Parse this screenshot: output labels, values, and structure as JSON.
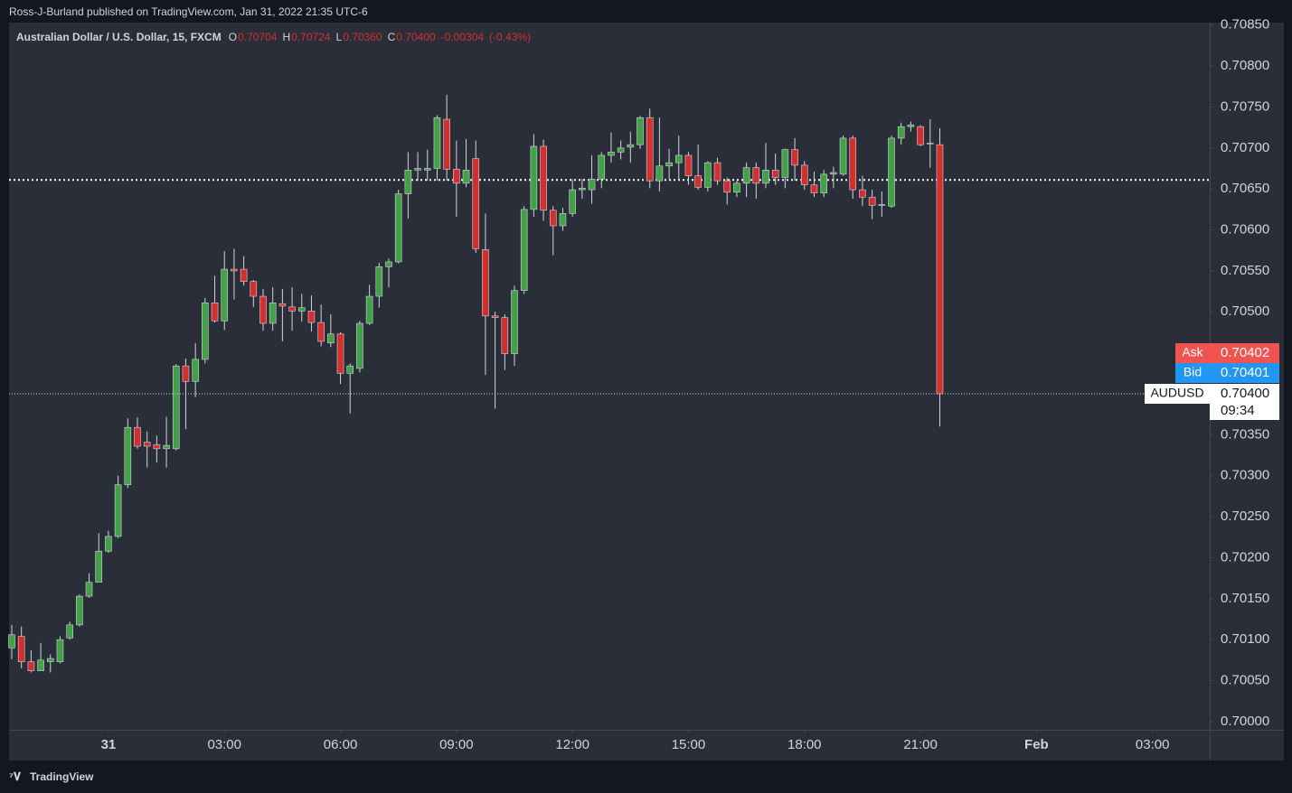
{
  "header": "Ross-J-Burland published on TradingView.com, Jan 31, 2022 21:35 UTC-6",
  "footer": "TradingView",
  "chart_data": {
    "type": "candlestick",
    "title": "Australian Dollar / U.S. Dollar, 15, FXCM",
    "legend": {
      "open_label": "O",
      "open": 0.70704,
      "high_label": "H",
      "high": 0.70724,
      "low_label": "L",
      "low": {
        "value": 0.7036,
        "label": "0.70360"
      },
      "close_label": "C",
      "close": {
        "value": 0.704,
        "label": "0.70400"
      },
      "change": -0.00304,
      "change_pct": {
        "value": -0.43,
        "label": "(-0.43%)"
      }
    },
    "up_color": "#43a047",
    "down_color": "#d32f2f",
    "wick_color": "#d1d4dc",
    "x": [
      -2.5,
      -2.25,
      -2,
      -1.75,
      -1.5,
      -1.25,
      -1,
      -0.75,
      -0.5,
      -0.25,
      0,
      0.25,
      0.5,
      0.75,
      1,
      1.25,
      1.5,
      1.75,
      2,
      2.25,
      2.5,
      2.75,
      3,
      3.25,
      3.5,
      3.75,
      4,
      4.25,
      4.5,
      4.75,
      5,
      5.25,
      5.5,
      5.75,
      6,
      6.25,
      6.5,
      6.75,
      7,
      7.25,
      7.5,
      7.75,
      8,
      8.25,
      8.5,
      8.75,
      9,
      9.25,
      9.5,
      9.75,
      10,
      10.25,
      10.5,
      10.75,
      11,
      11.25,
      11.5,
      11.75,
      12,
      12.25,
      12.5,
      12.75,
      13,
      13.25,
      13.5,
      13.75,
      14,
      14.25,
      14.5,
      14.75,
      15,
      15.25,
      15.5,
      15.75,
      16,
      16.25,
      16.5,
      16.75,
      17,
      17.25,
      17.5,
      17.75,
      18,
      18.25,
      18.5,
      18.75,
      19,
      19.25,
      19.5,
      19.75,
      20,
      20.25,
      20.5,
      20.75,
      21,
      21.25,
      21.5
    ],
    "open": [
      0.7009,
      0.70104,
      0.70073,
      0.70062,
      0.70073,
      0.70073,
      0.70102,
      0.70118,
      0.70153,
      0.7017,
      0.70208,
      0.70226,
      0.70289,
      0.70359,
      0.70341,
      0.70338,
      0.70333,
      0.70333,
      0.70434,
      0.70415,
      0.70442,
      0.70511,
      0.70489,
      0.70552,
      0.70552,
      0.70537,
      0.70519,
      0.70486,
      0.7051,
      0.70506,
      0.70501,
      0.70501,
      0.70487,
      0.70462,
      0.70473,
      0.70425,
      0.70431,
      0.70486,
      0.70519,
      0.70555,
      0.70561,
      0.70644,
      0.70673,
      0.70673,
      0.70675,
      0.70735,
      0.70674,
      0.70657,
      0.70687,
      0.70576,
      0.70495,
      0.70493,
      0.70449,
      0.70526,
      0.70625,
      0.70702,
      0.70624,
      0.70605,
      0.7062,
      0.70649,
      0.70649,
      0.70662,
      0.70691,
      0.70695,
      0.70701,
      0.70704,
      0.70737,
      0.7066,
      0.70678,
      0.70682,
      0.70691,
      0.70666,
      0.70652,
      0.70682,
      0.7066,
      0.70646,
      0.70657,
      0.70676,
      0.70657,
      0.70673,
      0.70664,
      0.70698,
      0.70679,
      0.70655,
      0.70645,
      0.70668,
      0.70668,
      0.70712,
      0.70649,
      0.7064,
      0.7063,
      0.70629,
      0.70712,
      0.70726,
      0.70726,
      0.70706,
      0.70704
    ],
    "high": [
      0.70118,
      0.70116,
      0.70087,
      0.70096,
      0.70082,
      0.70104,
      0.70122,
      0.70155,
      0.70181,
      0.7023,
      0.70233,
      0.703,
      0.7037,
      0.70371,
      0.70354,
      0.70349,
      0.70372,
      0.70436,
      0.70443,
      0.70462,
      0.70517,
      0.70544,
      0.70574,
      0.70577,
      0.70568,
      0.70539,
      0.70528,
      0.7053,
      0.70528,
      0.7053,
      0.70522,
      0.7052,
      0.70509,
      0.70497,
      0.70475,
      0.70437,
      0.70489,
      0.70533,
      0.7056,
      0.70565,
      0.70649,
      0.70695,
      0.70695,
      0.70698,
      0.7074,
      0.70765,
      0.70709,
      0.70711,
      0.70709,
      0.7062,
      0.705,
      0.70497,
      0.70532,
      0.70629,
      0.70717,
      0.7071,
      0.70629,
      0.70627,
      0.70662,
      0.70662,
      0.70691,
      0.70695,
      0.70719,
      0.70709,
      0.7072,
      0.70739,
      0.70748,
      0.70737,
      0.70699,
      0.70715,
      0.70695,
      0.70704,
      0.70684,
      0.70688,
      0.70664,
      0.7066,
      0.70682,
      0.70682,
      0.70706,
      0.70693,
      0.70699,
      0.70712,
      0.70684,
      0.70671,
      0.70673,
      0.70677,
      0.70715,
      0.70715,
      0.70666,
      0.70649,
      0.70647,
      0.70715,
      0.70731,
      0.70732,
      0.70728,
      0.70735,
      0.70724
    ],
    "low": [
      0.70076,
      0.70065,
      0.7006,
      0.70062,
      0.7006,
      0.70071,
      0.701,
      0.70116,
      0.70151,
      0.7017,
      0.70206,
      0.70224,
      0.70285,
      0.70333,
      0.7031,
      0.70316,
      0.7031,
      0.70331,
      0.70357,
      0.70396,
      0.70437,
      0.70487,
      0.70478,
      0.70515,
      0.70532,
      0.70506,
      0.70477,
      0.70477,
      0.70464,
      0.70477,
      0.70488,
      0.70476,
      0.70458,
      0.70457,
      0.70412,
      0.70376,
      0.70426,
      0.70484,
      0.70505,
      0.7053,
      0.70559,
      0.70614,
      0.7066,
      0.7066,
      0.7066,
      0.7066,
      0.70616,
      0.70652,
      0.70572,
      0.70423,
      0.70382,
      0.70429,
      0.70434,
      0.70522,
      0.70616,
      0.70611,
      0.70569,
      0.70599,
      0.70616,
      0.70638,
      0.70632,
      0.70651,
      0.70682,
      0.70686,
      0.70682,
      0.70699,
      0.70651,
      0.70647,
      0.70662,
      0.7066,
      0.70655,
      0.70649,
      0.70647,
      0.70655,
      0.70631,
      0.7064,
      0.7064,
      0.70638,
      0.70651,
      0.70655,
      0.70651,
      0.7066,
      0.70649,
      0.7064,
      0.7064,
      0.70651,
      0.70666,
      0.70638,
      0.70629,
      0.70613,
      0.70616,
      0.70627,
      0.70704,
      0.7072,
      0.70702,
      0.70676,
      0.7036
    ],
    "close": [
      0.70106,
      0.70073,
      0.70062,
      0.70075,
      0.70077,
      0.701,
      0.70118,
      0.70153,
      0.7017,
      0.70208,
      0.70226,
      0.70289,
      0.70359,
      0.70336,
      0.70336,
      0.70333,
      0.70337,
      0.70434,
      0.70415,
      0.70442,
      0.70511,
      0.70489,
      0.70552,
      0.7055,
      0.70537,
      0.70519,
      0.70486,
      0.70511,
      0.70507,
      0.70501,
      0.70505,
      0.70487,
      0.70464,
      0.70473,
      0.70425,
      0.70434,
      0.70486,
      0.70519,
      0.70555,
      0.70561,
      0.70644,
      0.70673,
      0.70675,
      0.70675,
      0.70737,
      0.70674,
      0.70657,
      0.70673,
      0.70577,
      0.70495,
      0.70493,
      0.70449,
      0.70526,
      0.70625,
      0.70702,
      0.70624,
      0.70605,
      0.7062,
      0.70649,
      0.70651,
      0.70662,
      0.70691,
      0.70695,
      0.707,
      0.70704,
      0.70737,
      0.7066,
      0.70678,
      0.70682,
      0.70691,
      0.70666,
      0.70652,
      0.70682,
      0.7066,
      0.70646,
      0.70657,
      0.70676,
      0.70657,
      0.70673,
      0.70664,
      0.70698,
      0.70679,
      0.70655,
      0.70645,
      0.70668,
      0.7067,
      0.70712,
      0.70649,
      0.7064,
      0.7063,
      0.70631,
      0.70712,
      0.70726,
      0.70728,
      0.70704,
      0.70705,
      0.704
    ],
    "xlim": [
      -2.57,
      28.48
    ],
    "xticks": [
      {
        "value": 0,
        "label": "31"
      },
      {
        "value": 3,
        "label": "03:00"
      },
      {
        "value": 6,
        "label": "06:00"
      },
      {
        "value": 9,
        "label": "09:00"
      },
      {
        "value": 12,
        "label": "12:00"
      },
      {
        "value": 15,
        "label": "15:00"
      },
      {
        "value": 18,
        "label": "18:00"
      },
      {
        "value": 21,
        "label": "21:00"
      },
      {
        "value": 24,
        "label": "Feb"
      },
      {
        "value": 27,
        "label": "03:00"
      }
    ],
    "ylim": [
      0.6999,
      0.70853
    ],
    "yticks": [
      {
        "value": 0.7,
        "label": "0.70000"
      },
      {
        "value": 0.7005,
        "label": "0.70050"
      },
      {
        "value": 0.701,
        "label": "0.70100"
      },
      {
        "value": 0.7015,
        "label": "0.70150"
      },
      {
        "value": 0.702,
        "label": "0.70200"
      },
      {
        "value": 0.7025,
        "label": "0.70250"
      },
      {
        "value": 0.703,
        "label": "0.70300"
      },
      {
        "value": 0.7035,
        "label": "0.70350"
      },
      {
        "value": 0.704,
        "label": "0.70400"
      },
      {
        "value": 0.7045,
        "label": "0.70450"
      },
      {
        "value": 0.705,
        "label": "0.70500"
      },
      {
        "value": 0.7055,
        "label": "0.70550"
      },
      {
        "value": 0.706,
        "label": "0.70600"
      },
      {
        "value": 0.7065,
        "label": "0.70650"
      },
      {
        "value": 0.707,
        "label": "0.70700"
      },
      {
        "value": 0.7075,
        "label": "0.70750"
      },
      {
        "value": 0.708,
        "label": "0.70800"
      },
      {
        "value": 0.7085,
        "label": "0.70850"
      }
    ],
    "reference_line": 0.70661,
    "price_line": {
      "name": "AUDUSD",
      "value": {
        "value": 0.704,
        "label": "0.70400"
      },
      "countdown": "09:34"
    },
    "ask": {
      "name": "Ask",
      "value": 0.70402,
      "color": "#f05350"
    },
    "bid": {
      "name": "Bid",
      "value": 0.70401,
      "color": "#2196f3"
    }
  }
}
